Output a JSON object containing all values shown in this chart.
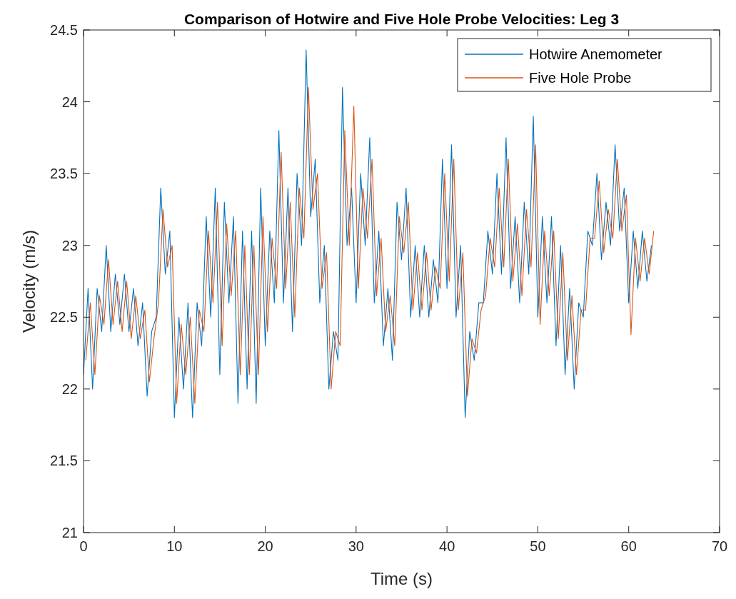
{
  "chart_data": {
    "type": "line",
    "title": "Comparison of Hotwire and Five Hole Probe Velocities: Leg 3",
    "xlabel": "Time (s)",
    "ylabel": "Velocity (m/s)",
    "xlim": [
      0,
      70
    ],
    "xticks": [
      0,
      10,
      20,
      30,
      40,
      50,
      60,
      70
    ],
    "ylim": [
      21,
      24.5
    ],
    "yticks": [
      21,
      21.5,
      22,
      22.5,
      23,
      23.5,
      24,
      24.5
    ],
    "grid": false,
    "legend": "top right",
    "marker": "none",
    "line_style": "solid",
    "series": [
      {
        "name": "Hotwire Anemometer",
        "color": "#0072bd",
        "x": [
          0,
          0.5,
          1,
          1.5,
          2,
          2.5,
          3,
          3.5,
          4,
          4.5,
          5,
          5.5,
          6,
          6.5,
          7,
          7.5,
          8,
          8.5,
          9,
          9.5,
          10,
          10.5,
          11,
          11.5,
          12,
          12.5,
          13,
          13.5,
          14,
          14.5,
          15,
          15.5,
          16,
          16.5,
          17,
          17.5,
          18,
          18.5,
          19,
          19.5,
          20,
          20.5,
          21,
          21.5,
          22,
          22.5,
          23,
          23.5,
          24,
          24.5,
          25,
          25.5,
          26,
          26.5,
          27,
          27.5,
          28,
          28.5,
          29,
          29.5,
          30,
          30.5,
          31,
          31.5,
          32,
          32.5,
          33,
          33.5,
          34,
          34.5,
          35,
          35.5,
          36,
          36.5,
          37,
          37.5,
          38,
          38.5,
          39,
          39.5,
          40,
          40.5,
          41,
          41.5,
          42,
          42.5,
          43,
          43.5,
          44,
          44.5,
          45,
          45.5,
          46,
          46.5,
          47,
          47.5,
          48,
          48.5,
          49,
          49.5,
          50,
          50.5,
          51,
          51.5,
          52,
          52.5,
          53,
          53.5,
          54,
          54.5,
          55,
          55.5,
          56,
          56.5,
          57,
          57.5,
          58,
          58.5,
          59,
          59.5,
          60,
          60.5,
          61,
          61.5,
          62,
          62.5
        ],
        "values": [
          22.1,
          22.7,
          22.0,
          22.7,
          22.4,
          23.0,
          22.4,
          22.8,
          22.45,
          22.8,
          22.4,
          22.7,
          22.3,
          22.6,
          21.95,
          22.4,
          22.5,
          23.4,
          22.8,
          23.1,
          21.8,
          22.5,
          22.0,
          22.6,
          21.8,
          22.6,
          22.3,
          23.2,
          22.5,
          23.4,
          22.1,
          23.3,
          22.6,
          23.2,
          21.9,
          23.1,
          22.0,
          23.1,
          21.9,
          23.4,
          22.3,
          23.1,
          22.6,
          23.8,
          22.6,
          23.4,
          22.4,
          23.5,
          23.0,
          24.36,
          23.2,
          23.6,
          22.6,
          23.0,
          22.0,
          22.4,
          22.2,
          24.1,
          23.0,
          23.4,
          22.6,
          23.5,
          23.0,
          23.75,
          22.6,
          23.1,
          22.3,
          22.7,
          22.2,
          23.3,
          22.9,
          23.4,
          22.5,
          23.0,
          22.5,
          23.0,
          22.5,
          22.9,
          22.6,
          23.6,
          22.7,
          23.7,
          22.5,
          23.0,
          21.8,
          22.4,
          22.2,
          22.6,
          22.6,
          23.1,
          22.8,
          23.5,
          22.8,
          23.75,
          22.7,
          23.2,
          22.6,
          23.3,
          22.8,
          23.9,
          22.5,
          23.2,
          22.6,
          23.2,
          22.3,
          23.0,
          22.1,
          22.7,
          22.0,
          22.6,
          22.5,
          23.1,
          23.0,
          23.5,
          22.9,
          23.3,
          23.0,
          23.7,
          23.1,
          23.4,
          22.6,
          23.1,
          22.7,
          23.1,
          22.75,
          23.0
        ]
      },
      {
        "name": "Five Hole Probe",
        "color": "#d95319",
        "x": [
          0.25,
          0.75,
          1.25,
          1.75,
          2.25,
          2.75,
          3.25,
          3.75,
          4.25,
          4.75,
          5.25,
          5.75,
          6.25,
          6.75,
          7.25,
          7.75,
          8.25,
          8.75,
          9.25,
          9.75,
          10.25,
          10.75,
          11.25,
          11.75,
          12.25,
          12.75,
          13.25,
          13.75,
          14.25,
          14.75,
          15.25,
          15.75,
          16.25,
          16.75,
          17.25,
          17.75,
          18.25,
          18.75,
          19.25,
          19.75,
          20.25,
          20.75,
          21.25,
          21.75,
          22.25,
          22.75,
          23.25,
          23.75,
          24.25,
          24.75,
          25.25,
          25.75,
          26.25,
          26.75,
          27.25,
          27.75,
          28.25,
          28.75,
          29.25,
          29.75,
          30.25,
          30.75,
          31.25,
          31.75,
          32.25,
          32.75,
          33.25,
          33.75,
          34.25,
          34.75,
          35.25,
          35.75,
          36.25,
          36.75,
          37.25,
          37.75,
          38.25,
          38.75,
          39.25,
          39.75,
          40.25,
          40.75,
          41.25,
          41.75,
          42.25,
          42.75,
          43.25,
          43.75,
          44.25,
          44.75,
          45.25,
          45.75,
          46.25,
          46.75,
          47.25,
          47.75,
          48.25,
          48.75,
          49.25,
          49.75,
          50.25,
          50.75,
          51.25,
          51.75,
          52.25,
          52.75,
          53.25,
          53.75,
          54.25,
          54.75,
          55.25,
          55.75,
          56.25,
          56.75,
          57.25,
          57.75,
          58.25,
          58.75,
          59.25,
          59.75,
          60.25,
          60.75,
          61.25,
          61.75,
          62.25,
          62.75
        ],
        "values": [
          22.2,
          22.6,
          22.1,
          22.65,
          22.45,
          22.9,
          22.45,
          22.75,
          22.4,
          22.75,
          22.35,
          22.65,
          22.35,
          22.55,
          22.05,
          22.35,
          22.6,
          23.25,
          22.85,
          23.0,
          21.9,
          22.45,
          22.1,
          22.5,
          21.9,
          22.55,
          22.4,
          23.1,
          22.6,
          23.3,
          22.3,
          23.15,
          22.65,
          23.1,
          22.1,
          23.0,
          22.1,
          23.0,
          22.1,
          23.2,
          22.4,
          23.05,
          22.7,
          23.65,
          22.7,
          23.3,
          22.5,
          23.4,
          23.05,
          24.1,
          23.25,
          23.5,
          22.7,
          22.95,
          22.0,
          22.4,
          22.3,
          23.8,
          23.0,
          23.97,
          22.7,
          23.4,
          23.05,
          23.6,
          22.65,
          23.05,
          22.4,
          22.65,
          22.3,
          23.2,
          22.95,
          23.3,
          22.55,
          22.95,
          22.55,
          22.95,
          22.55,
          22.85,
          22.7,
          23.5,
          22.75,
          23.6,
          22.55,
          22.95,
          21.95,
          22.35,
          22.25,
          22.55,
          22.65,
          23.05,
          22.85,
          23.4,
          22.85,
          23.6,
          22.75,
          23.15,
          22.65,
          23.25,
          22.85,
          23.7,
          22.45,
          23.1,
          22.65,
          23.1,
          22.35,
          22.95,
          22.2,
          22.65,
          22.1,
          22.55,
          22.55,
          23.05,
          23.05,
          23.45,
          22.95,
          23.25,
          23.05,
          23.6,
          23.1,
          23.35,
          22.38,
          23.05,
          22.75,
          23.05,
          22.8,
          23.1
        ]
      }
    ]
  }
}
